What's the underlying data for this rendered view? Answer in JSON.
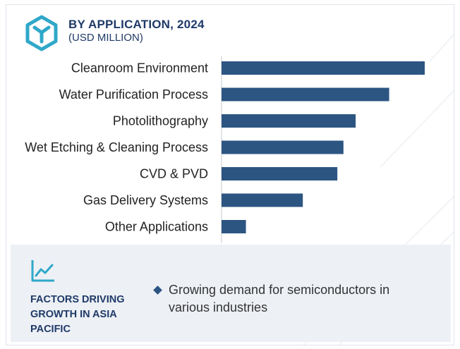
{
  "header": {
    "title": "BY APPLICATION, 2024",
    "subtitle": "(USD MILLION)",
    "logo_icon": "hexagon-logo-icon"
  },
  "chart_data": {
    "type": "bar",
    "orientation": "horizontal",
    "title": "BY APPLICATION, 2024",
    "subtitle": "(USD MILLION)",
    "categories": [
      "Cleanroom Environment",
      "Water Purification Process",
      "Photolithography",
      "Wet Etching & Cleaning Process",
      "CVD & PVD",
      "Gas Delivery Systems",
      "Other Applications"
    ],
    "values": [
      100,
      82.5,
      66,
      60,
      57,
      40,
      12
    ],
    "xlim": [
      0,
      100
    ],
    "grid": false,
    "bar_color": "#2c5582"
  },
  "panel": {
    "icon": "trend-line-icon",
    "title": "FACTORS DRIVING GROWTH IN ASIA PACIFIC",
    "bullets": [
      "Growing demand for semiconductors in various industries"
    ]
  },
  "colors": {
    "accent": "#1f3a68",
    "bar": "#2c5582",
    "logo": "#2fa8c9",
    "panel_bg": "#edf0f5"
  }
}
